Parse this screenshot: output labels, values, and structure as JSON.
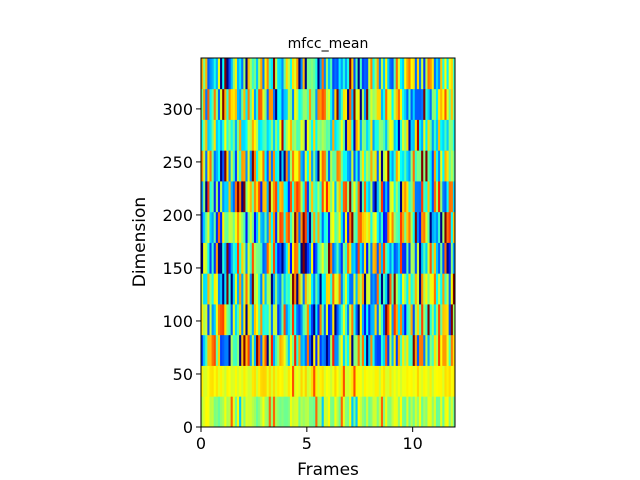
{
  "chart_data": {
    "type": "heatmap",
    "title": "mfcc_mean",
    "xlabel": "Frames",
    "ylabel": "Dimension",
    "xlim": [
      0,
      12
    ],
    "ylim": [
      0,
      348
    ],
    "x_ticks": [
      0,
      5,
      10
    ],
    "y_ticks": [
      0,
      50,
      100,
      150,
      200,
      250,
      300
    ],
    "colormap": "jet",
    "value_range": [
      0,
      1
    ],
    "row_height": 29,
    "n_rows": 12,
    "n_cols": 120,
    "row_baselines": [
      0.55,
      0.62,
      0.5,
      0.48,
      0.5,
      0.48,
      0.47,
      0.5,
      0.48,
      0.5,
      0.5,
      0.48
    ],
    "row_variability": [
      0.08,
      0.05,
      0.35,
      0.35,
      0.28,
      0.35,
      0.35,
      0.35,
      0.3,
      0.22,
      0.3,
      0.3
    ],
    "grid": false
  }
}
